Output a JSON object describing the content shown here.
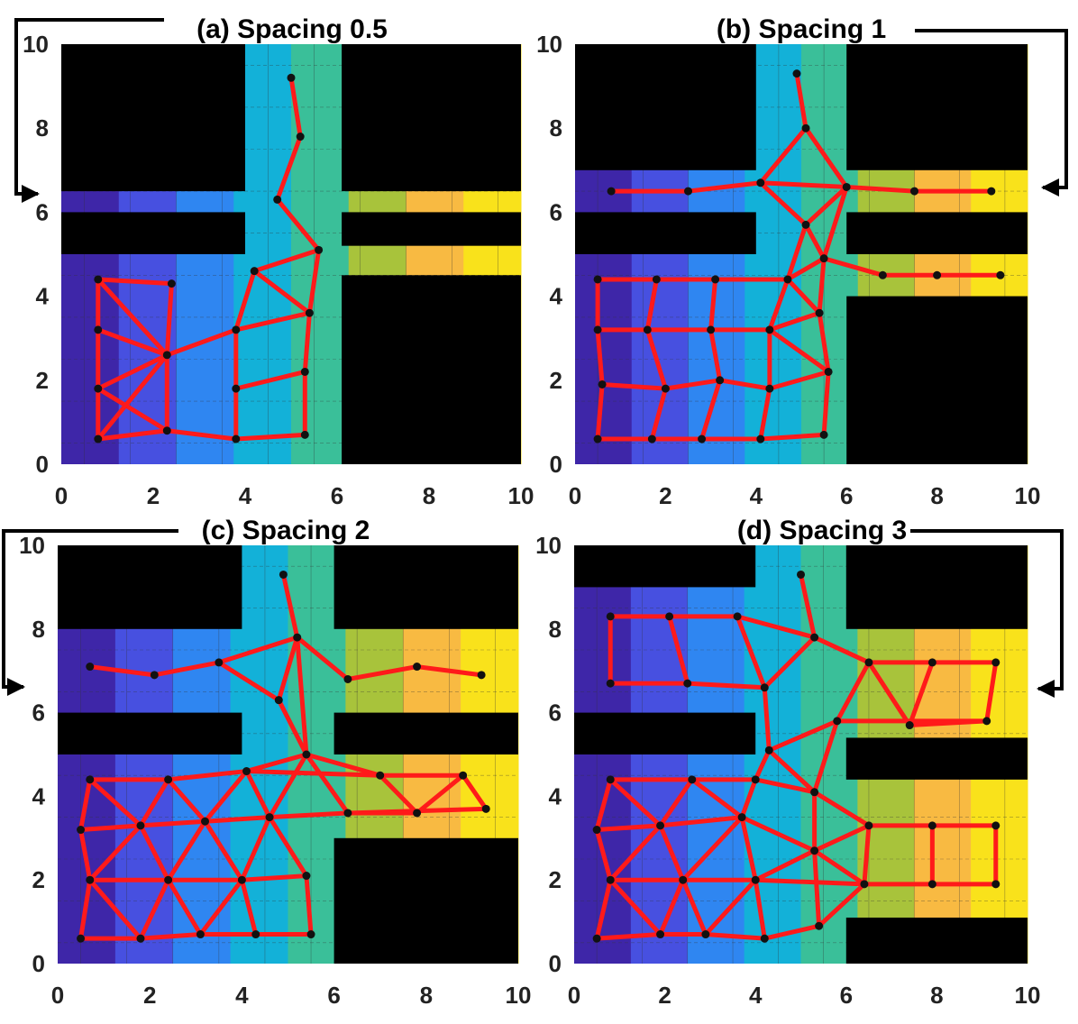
{
  "chart_data": [
    {
      "type": "scatter",
      "title": "(a) Spacing 0.5",
      "xlim": [
        0,
        10
      ],
      "ylim": [
        0,
        10
      ],
      "xticks": [
        0,
        2,
        4,
        6,
        8,
        10
      ],
      "yticks": [
        0,
        2,
        4,
        6,
        8,
        10
      ],
      "obstacles": [
        [
          0,
          6.5,
          4,
          10
        ],
        [
          6.1,
          6.5,
          10,
          10
        ],
        [
          0,
          5,
          4,
          6
        ],
        [
          6.1,
          5.2,
          10,
          6
        ],
        [
          6.1,
          0,
          10,
          4.5
        ]
      ],
      "points": [
        [
          5.0,
          9.2
        ],
        [
          5.2,
          7.8
        ],
        [
          4.7,
          6.3
        ],
        [
          5.6,
          5.1
        ],
        [
          4.2,
          4.6
        ],
        [
          5.4,
          3.6
        ],
        [
          0.8,
          4.4
        ],
        [
          2.4,
          4.3
        ],
        [
          0.8,
          3.2
        ],
        [
          2.3,
          2.6
        ],
        [
          3.8,
          3.2
        ],
        [
          0.8,
          1.8
        ],
        [
          3.8,
          1.8
        ],
        [
          5.3,
          2.2
        ],
        [
          0.8,
          0.6
        ],
        [
          2.3,
          0.8
        ],
        [
          3.8,
          0.6
        ],
        [
          5.3,
          0.7
        ]
      ],
      "edges": [
        [
          0,
          1
        ],
        [
          1,
          2
        ],
        [
          2,
          3
        ],
        [
          3,
          4
        ],
        [
          3,
          5
        ],
        [
          4,
          5
        ],
        [
          4,
          10
        ],
        [
          5,
          10
        ],
        [
          6,
          7
        ],
        [
          6,
          8
        ],
        [
          7,
          9
        ],
        [
          8,
          9
        ],
        [
          9,
          10
        ],
        [
          6,
          9
        ],
        [
          8,
          11
        ],
        [
          9,
          11
        ],
        [
          11,
          15
        ],
        [
          9,
          15
        ],
        [
          10,
          12
        ],
        [
          12,
          13
        ],
        [
          13,
          5
        ],
        [
          12,
          16
        ],
        [
          13,
          17
        ],
        [
          14,
          15
        ],
        [
          15,
          16
        ],
        [
          16,
          17
        ],
        [
          11,
          14
        ],
        [
          14,
          9
        ]
      ]
    },
    {
      "type": "scatter",
      "title": "(b) Spacing 1",
      "xlim": [
        0,
        10
      ],
      "ylim": [
        0,
        10
      ],
      "xticks": [
        0,
        2,
        4,
        6,
        8,
        10
      ],
      "yticks": [
        0,
        2,
        4,
        6,
        8,
        10
      ],
      "obstacles": [
        [
          0,
          7,
          4,
          10
        ],
        [
          6,
          7,
          10,
          10
        ],
        [
          0,
          5,
          4,
          6
        ],
        [
          6,
          5,
          10,
          6
        ],
        [
          6,
          0,
          10,
          4
        ]
      ],
      "points": [
        [
          4.9,
          9.3
        ],
        [
          5.1,
          8.0
        ],
        [
          4.1,
          6.7
        ],
        [
          6.0,
          6.6
        ],
        [
          0.8,
          6.5
        ],
        [
          2.5,
          6.5
        ],
        [
          7.5,
          6.5
        ],
        [
          9.2,
          6.5
        ],
        [
          5.1,
          5.7
        ],
        [
          5.5,
          4.9
        ],
        [
          4.7,
          4.4
        ],
        [
          6.8,
          4.5
        ],
        [
          8.0,
          4.5
        ],
        [
          9.4,
          4.5
        ],
        [
          5.4,
          3.6
        ],
        [
          0.5,
          4.4
        ],
        [
          1.8,
          4.4
        ],
        [
          3.1,
          4.4
        ],
        [
          4.3,
          3.2
        ],
        [
          0.5,
          3.2
        ],
        [
          1.6,
          3.2
        ],
        [
          3.0,
          3.2
        ],
        [
          5.6,
          2.2
        ],
        [
          0.6,
          1.9
        ],
        [
          2.0,
          1.8
        ],
        [
          3.2,
          2.0
        ],
        [
          4.3,
          1.8
        ],
        [
          0.5,
          0.6
        ],
        [
          1.7,
          0.6
        ],
        [
          2.8,
          0.6
        ],
        [
          4.1,
          0.6
        ],
        [
          5.5,
          0.7
        ]
      ],
      "edges": [
        [
          0,
          1
        ],
        [
          1,
          2
        ],
        [
          1,
          3
        ],
        [
          2,
          3
        ],
        [
          4,
          5
        ],
        [
          5,
          2
        ],
        [
          3,
          6
        ],
        [
          6,
          7
        ],
        [
          2,
          8
        ],
        [
          3,
          8
        ],
        [
          8,
          9
        ],
        [
          3,
          9
        ],
        [
          9,
          10
        ],
        [
          9,
          11
        ],
        [
          11,
          12
        ],
        [
          12,
          13
        ],
        [
          8,
          10
        ],
        [
          9,
          14
        ],
        [
          10,
          14
        ],
        [
          10,
          18
        ],
        [
          14,
          18
        ],
        [
          15,
          16
        ],
        [
          16,
          17
        ],
        [
          17,
          10
        ],
        [
          15,
          19
        ],
        [
          16,
          20
        ],
        [
          17,
          21
        ],
        [
          19,
          20
        ],
        [
          20,
          21
        ],
        [
          21,
          18
        ],
        [
          18,
          22
        ],
        [
          14,
          22
        ],
        [
          19,
          23
        ],
        [
          20,
          24
        ],
        [
          21,
          25
        ],
        [
          23,
          24
        ],
        [
          24,
          25
        ],
        [
          25,
          26
        ],
        [
          26,
          22
        ],
        [
          23,
          27
        ],
        [
          24,
          28
        ],
        [
          25,
          29
        ],
        [
          26,
          30
        ],
        [
          22,
          31
        ],
        [
          27,
          28
        ],
        [
          28,
          29
        ],
        [
          29,
          30
        ],
        [
          30,
          31
        ],
        [
          16,
          20
        ],
        [
          18,
          26
        ]
      ]
    },
    {
      "type": "scatter",
      "title": "(c) Spacing 2",
      "xlim": [
        0,
        10
      ],
      "ylim": [
        0,
        10
      ],
      "xticks": [
        0,
        2,
        4,
        6,
        8,
        10
      ],
      "yticks": [
        0,
        2,
        4,
        6,
        8,
        10
      ],
      "obstacles": [
        [
          0,
          8,
          4,
          10
        ],
        [
          6,
          8,
          10,
          10
        ],
        [
          0,
          5,
          4,
          6
        ],
        [
          6,
          5,
          10,
          6
        ],
        [
          6,
          0,
          10,
          3
        ]
      ],
      "points": [
        [
          4.9,
          9.3
        ],
        [
          5.2,
          7.8
        ],
        [
          0.7,
          7.1
        ],
        [
          2.1,
          6.9
        ],
        [
          3.5,
          7.2
        ],
        [
          4.8,
          6.3
        ],
        [
          6.3,
          6.8
        ],
        [
          7.8,
          7.1
        ],
        [
          9.2,
          6.9
        ],
        [
          5.4,
          5.0
        ],
        [
          0.7,
          4.4
        ],
        [
          2.4,
          4.4
        ],
        [
          4.1,
          4.6
        ],
        [
          7.0,
          4.5
        ],
        [
          8.8,
          4.5
        ],
        [
          9.3,
          3.7
        ],
        [
          7.8,
          3.6
        ],
        [
          6.3,
          3.6
        ],
        [
          0.5,
          3.2
        ],
        [
          1.8,
          3.3
        ],
        [
          3.2,
          3.4
        ],
        [
          4.6,
          3.5
        ],
        [
          0.7,
          2.0
        ],
        [
          2.4,
          2.0
        ],
        [
          4.0,
          2.0
        ],
        [
          5.4,
          2.1
        ],
        [
          0.5,
          0.6
        ],
        [
          1.8,
          0.6
        ],
        [
          3.1,
          0.7
        ],
        [
          4.3,
          0.7
        ],
        [
          5.5,
          0.7
        ]
      ],
      "edges": [
        [
          0,
          1
        ],
        [
          1,
          4
        ],
        [
          1,
          5
        ],
        [
          1,
          6
        ],
        [
          2,
          3
        ],
        [
          3,
          4
        ],
        [
          4,
          5
        ],
        [
          6,
          7
        ],
        [
          7,
          8
        ],
        [
          5,
          9
        ],
        [
          1,
          9
        ],
        [
          9,
          12
        ],
        [
          9,
          13
        ],
        [
          9,
          17
        ],
        [
          10,
          11
        ],
        [
          11,
          12
        ],
        [
          12,
          13
        ],
        [
          13,
          14
        ],
        [
          14,
          15
        ],
        [
          13,
          16
        ],
        [
          14,
          16
        ],
        [
          16,
          17
        ],
        [
          17,
          15
        ],
        [
          10,
          18
        ],
        [
          10,
          19
        ],
        [
          11,
          19
        ],
        [
          11,
          20
        ],
        [
          12,
          20
        ],
        [
          12,
          21
        ],
        [
          9,
          21
        ],
        [
          18,
          19
        ],
        [
          19,
          20
        ],
        [
          20,
          21
        ],
        [
          21,
          17
        ],
        [
          18,
          22
        ],
        [
          19,
          22
        ],
        [
          19,
          23
        ],
        [
          20,
          23
        ],
        [
          20,
          24
        ],
        [
          21,
          24
        ],
        [
          21,
          25
        ],
        [
          22,
          23
        ],
        [
          23,
          24
        ],
        [
          24,
          25
        ],
        [
          22,
          26
        ],
        [
          22,
          27
        ],
        [
          23,
          27
        ],
        [
          23,
          28
        ],
        [
          24,
          28
        ],
        [
          24,
          29
        ],
        [
          25,
          30
        ],
        [
          26,
          27
        ],
        [
          27,
          28
        ],
        [
          28,
          29
        ],
        [
          29,
          30
        ]
      ]
    },
    {
      "type": "scatter",
      "title": "(d) Spacing 3",
      "xlim": [
        0,
        10
      ],
      "ylim": [
        0,
        10
      ],
      "xticks": [
        0,
        2,
        4,
        6,
        8,
        10
      ],
      "yticks": [
        0,
        2,
        4,
        6,
        8,
        10
      ],
      "obstacles": [
        [
          0,
          9,
          4,
          10
        ],
        [
          6,
          8,
          10,
          10
        ],
        [
          0,
          5,
          4,
          6
        ],
        [
          6,
          4.4,
          10,
          5.4
        ],
        [
          6,
          0,
          10,
          1.1
        ]
      ],
      "points": [
        [
          5.0,
          9.3
        ],
        [
          5.3,
          7.8
        ],
        [
          0.8,
          8.3
        ],
        [
          2.1,
          8.3
        ],
        [
          3.6,
          8.3
        ],
        [
          0.8,
          6.7
        ],
        [
          2.5,
          6.7
        ],
        [
          4.2,
          6.6
        ],
        [
          6.5,
          7.2
        ],
        [
          7.9,
          7.2
        ],
        [
          9.3,
          7.2
        ],
        [
          5.8,
          5.8
        ],
        [
          7.4,
          5.7
        ],
        [
          9.1,
          5.8
        ],
        [
          4.3,
          5.1
        ],
        [
          0.8,
          4.4
        ],
        [
          2.6,
          4.4
        ],
        [
          4.0,
          4.4
        ],
        [
          5.3,
          4.1
        ],
        [
          0.5,
          3.2
        ],
        [
          1.9,
          3.3
        ],
        [
          3.7,
          3.5
        ],
        [
          6.5,
          3.3
        ],
        [
          7.9,
          3.3
        ],
        [
          9.3,
          3.3
        ],
        [
          5.3,
          2.7
        ],
        [
          0.8,
          2.0
        ],
        [
          2.4,
          2.0
        ],
        [
          4.0,
          2.0
        ],
        [
          6.4,
          1.9
        ],
        [
          7.9,
          1.9
        ],
        [
          9.3,
          1.9
        ],
        [
          0.5,
          0.6
        ],
        [
          1.9,
          0.7
        ],
        [
          2.9,
          0.7
        ],
        [
          4.2,
          0.6
        ],
        [
          5.4,
          0.9
        ]
      ],
      "edges": [
        [
          0,
          1
        ],
        [
          2,
          3
        ],
        [
          3,
          4
        ],
        [
          4,
          1
        ],
        [
          2,
          5
        ],
        [
          3,
          6
        ],
        [
          4,
          7
        ],
        [
          5,
          6
        ],
        [
          6,
          7
        ],
        [
          7,
          1
        ],
        [
          1,
          8
        ],
        [
          8,
          9
        ],
        [
          9,
          10
        ],
        [
          10,
          13
        ],
        [
          8,
          11
        ],
        [
          8,
          12
        ],
        [
          9,
          12
        ],
        [
          12,
          13
        ],
        [
          11,
          13
        ],
        [
          7,
          14
        ],
        [
          11,
          14
        ],
        [
          14,
          17
        ],
        [
          14,
          18
        ],
        [
          11,
          18
        ],
        [
          15,
          16
        ],
        [
          16,
          17
        ],
        [
          17,
          18
        ],
        [
          15,
          19
        ],
        [
          15,
          20
        ],
        [
          16,
          20
        ],
        [
          16,
          21
        ],
        [
          17,
          21
        ],
        [
          18,
          25
        ],
        [
          18,
          22
        ],
        [
          19,
          20
        ],
        [
          20,
          21
        ],
        [
          21,
          25
        ],
        [
          22,
          23
        ],
        [
          23,
          24
        ],
        [
          22,
          25
        ],
        [
          22,
          29
        ],
        [
          23,
          30
        ],
        [
          24,
          31
        ],
        [
          29,
          30
        ],
        [
          30,
          31
        ],
        [
          19,
          26
        ],
        [
          20,
          26
        ],
        [
          20,
          27
        ],
        [
          21,
          27
        ],
        [
          21,
          28
        ],
        [
          25,
          28
        ],
        [
          25,
          29
        ],
        [
          26,
          27
        ],
        [
          27,
          28
        ],
        [
          28,
          29
        ],
        [
          26,
          32
        ],
        [
          26,
          33
        ],
        [
          27,
          33
        ],
        [
          27,
          34
        ],
        [
          28,
          34
        ],
        [
          28,
          35
        ],
        [
          29,
          36
        ],
        [
          32,
          33
        ],
        [
          33,
          34
        ],
        [
          34,
          35
        ],
        [
          35,
          36
        ],
        [
          25,
          36
        ]
      ]
    }
  ],
  "colors": {
    "edge": "#ff1a1a",
    "node": "#111111",
    "obstacle": "#000000",
    "arrow": "#000000",
    "colormap": [
      "#3e26a8",
      "#4750e0",
      "#2f86f1",
      "#13b1d8",
      "#3abf99",
      "#a8c33b",
      "#f8ba42",
      "#f9e21b"
    ]
  }
}
